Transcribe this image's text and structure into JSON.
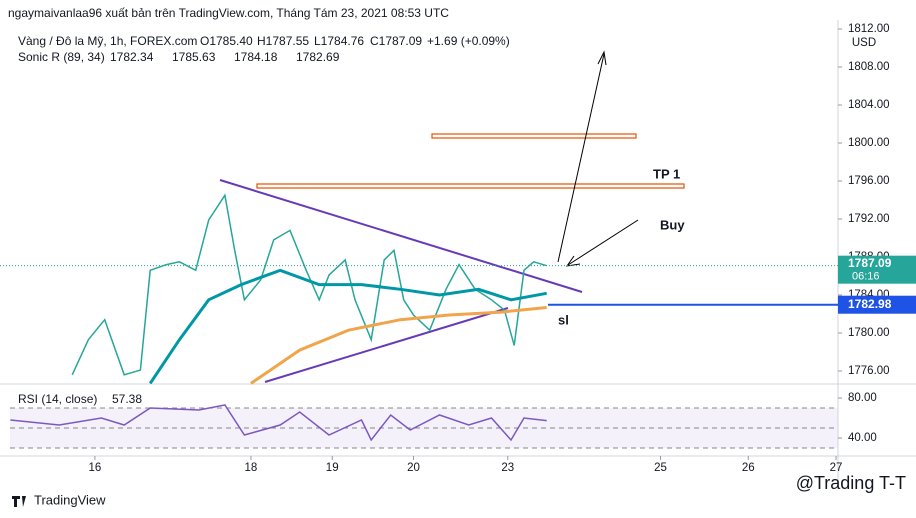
{
  "header": {
    "title": "ngaymaivanlaa96 xuất bản trên TradingView.com, Tháng Tám 23, 2021 08:53 UTC"
  },
  "legend": {
    "symbol": "Vàng / Đô la Mỹ, 1h, FOREX.com",
    "ohlc": [
      "O1785.40",
      "H1787.55",
      "L1784.76",
      "C1787.09"
    ],
    "change": "+1.69 (+0.09%)",
    "indicator": "Sonic R (89, 34)",
    "indicator_values": [
      "1782.34",
      "1785.63",
      "1784.18",
      "1782.69"
    ],
    "rsi": "RSI (14, close)",
    "rsi_value": "57.38"
  },
  "chart_data": [
    {
      "type": "line",
      "currency": "USD",
      "xlim": [
        -29.2,
        228.6
      ],
      "ylim": [
        1774.74,
        1812.95
      ],
      "xticks": [
        {
          "value": 0,
          "label": "16"
        },
        {
          "value": 48,
          "label": "18"
        },
        {
          "value": 73,
          "label": "19"
        },
        {
          "value": 98,
          "label": "20"
        },
        {
          "value": 127,
          "label": "23"
        },
        {
          "value": 174,
          "label": "25"
        },
        {
          "value": 201,
          "label": "26"
        },
        {
          "value": 228,
          "label": "27"
        }
      ],
      "yticks": [
        {
          "value": 1776,
          "label": "1776.00"
        },
        {
          "value": 1780,
          "label": "1780.00"
        },
        {
          "value": 1784,
          "label": "1784.00"
        },
        {
          "value": 1788,
          "label": "1788.00"
        },
        {
          "value": 1792,
          "label": "1792.00"
        },
        {
          "value": 1796,
          "label": "1796.00"
        },
        {
          "value": 1800,
          "label": "1800.00"
        },
        {
          "value": 1804,
          "label": "1804.00"
        },
        {
          "value": 1808,
          "label": "1808.00"
        },
        {
          "value": 1812,
          "label": "1812.00"
        }
      ],
      "series": [
        {
          "color": "#26a69a",
          "x": [
            -7,
            -2,
            3,
            9,
            14,
            17,
            22,
            26,
            31,
            35,
            40,
            43,
            46,
            51,
            55,
            60,
            65,
            69,
            72,
            77,
            80,
            85,
            89,
            92,
            95,
            98,
            103,
            108,
            112,
            117,
            122,
            126,
            129,
            132,
            135,
            139
          ],
          "values": [
            1775.6,
            1779.3,
            1781.4,
            1775.6,
            1776.1,
            1786.6,
            1787.2,
            1787.5,
            1786.6,
            1791.9,
            1794.5,
            1788.7,
            1783.5,
            1785.6,
            1789.8,
            1790.8,
            1786.6,
            1783.5,
            1786.1,
            1787.7,
            1783.5,
            1779.3,
            1787.7,
            1788.7,
            1783.5,
            1781.9,
            1780.3,
            1784.6,
            1787.2,
            1784.6,
            1783.5,
            1782.4,
            1778.7,
            1786.6,
            1787.5,
            1787.09
          ]
        },
        {
          "color": "#0097a7",
          "x": [
            17,
            26,
            35,
            45,
            57,
            69,
            82,
            94,
            106,
            118,
            128,
            139
          ],
          "values": [
            1774.7,
            1779.3,
            1783.5,
            1785.1,
            1786.6,
            1785.1,
            1785.1,
            1784.6,
            1784.0,
            1784.6,
            1783.5,
            1784.18
          ]
        },
        {
          "color": "#f0a54a",
          "x": [
            48,
            63,
            78,
            94,
            109,
            125,
            139
          ],
          "values": [
            1774.7,
            1778.2,
            1780.3,
            1781.4,
            1781.9,
            1782.2,
            1782.69
          ]
        }
      ],
      "last_price": 1787.09,
      "countdown": "06:16",
      "last_price_color": "#26a69a",
      "price_line": 1782.98,
      "price_line_color": "#1e53e5",
      "annotations": [
        "TP 1",
        "Buy",
        "sl"
      ]
    },
    {
      "type": "line",
      "xlim": [
        -29.2,
        228.6
      ],
      "ylim": [
        23,
        93
      ],
      "yticks": [
        {
          "value": 80,
          "label": "80.00"
        },
        {
          "value": 40,
          "label": "40.00"
        }
      ],
      "levels": [
        70,
        50,
        30
      ],
      "series": [
        {
          "color": "#7e57c2",
          "x": [
            -26,
            -11,
            2,
            9,
            17,
            32,
            40,
            46,
            57,
            63,
            72,
            82,
            85,
            91,
            97,
            106,
            115,
            122,
            128,
            132,
            139
          ],
          "values": [
            58,
            53,
            60,
            53,
            70,
            68,
            73,
            43,
            53,
            66,
            43,
            58,
            38,
            63,
            48,
            63,
            53,
            60,
            38,
            60,
            57.38
          ]
        }
      ]
    }
  ],
  "footer": {
    "brand": "TradingView",
    "watermark": "@Trading T-T"
  }
}
